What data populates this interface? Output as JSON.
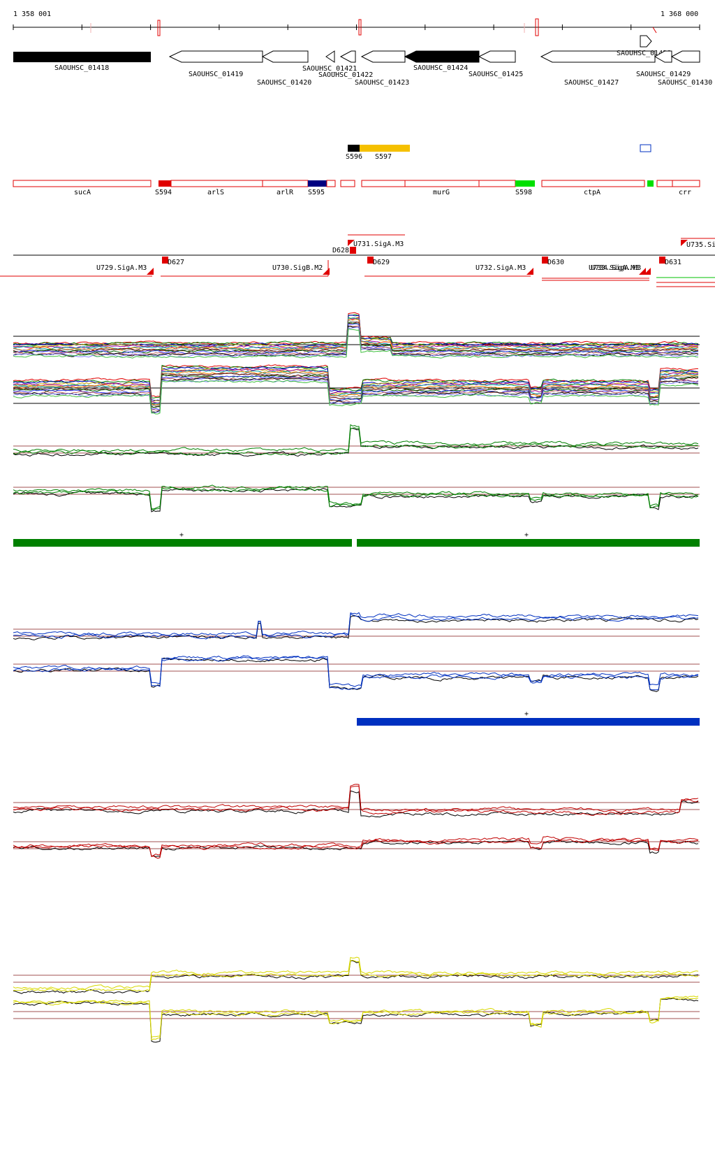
{
  "coords": {
    "start": "1 358 001",
    "end": "1 368 000"
  },
  "genes": [
    {
      "label": "SAOUHSC_01418",
      "filled": true
    },
    {
      "label": "SAOUHSC_01419",
      "filled": false
    },
    {
      "label": "SAOUHSC_01420",
      "filled": false
    },
    {
      "label": "SAOUHSC_01421",
      "filled": false
    },
    {
      "label": "SAOUHSC_01422",
      "filled": false
    },
    {
      "label": "SAOUHSC_01423",
      "filled": false
    },
    {
      "label": "SAOUHSC_01424",
      "filled": true
    },
    {
      "label": "SAOUHSC_01425",
      "filled": false
    },
    {
      "label": "SAOUHSC_01427",
      "filled": false
    },
    {
      "label": "SAOUHSC_01428",
      "filled": false
    },
    {
      "label": "SAOUHSC_01429",
      "filled": false
    },
    {
      "label": "SAOUHSC_01430",
      "filled": false
    }
  ],
  "segments": [
    {
      "label": "S596",
      "color": "#000000"
    },
    {
      "label": "S597",
      "color": "#f5c000"
    }
  ],
  "features": [
    {
      "label": "sucA"
    },
    {
      "label": "S594",
      "color": "#e00000"
    },
    {
      "label": "arlS"
    },
    {
      "label": "arlR"
    },
    {
      "label": "S595",
      "color": "#000080"
    },
    {
      "label": "murG"
    },
    {
      "label": "S598",
      "color": "#00e000"
    },
    {
      "label": "ctpA"
    },
    {
      "label": "crr"
    }
  ],
  "transcripts": {
    "upper": [
      {
        "label": "D628"
      },
      {
        "label": "U731.SigA.M3"
      },
      {
        "label": "U735.Si"
      }
    ],
    "lower": [
      {
        "label": "U729.SigA.M3"
      },
      {
        "label": "D627"
      },
      {
        "label": "U730.SigB.M2"
      },
      {
        "label": "D629"
      },
      {
        "label": "U732.SigA.M3"
      },
      {
        "label": "D630"
      },
      {
        "label": "U733.SigA.M3"
      },
      {
        "label": "U734.SigA.M3"
      },
      {
        "label": "D631"
      }
    ]
  },
  "strand_marks": [
    "+",
    "+",
    "+"
  ],
  "colors": {
    "gene_border": "#000000",
    "feature_border": "#e00000",
    "green_panel": "#008000",
    "blue_panel": "#0030c0",
    "red_panel": "#c00000",
    "yellow_panel": "#d8d800",
    "reference_line": "#a05050"
  }
}
